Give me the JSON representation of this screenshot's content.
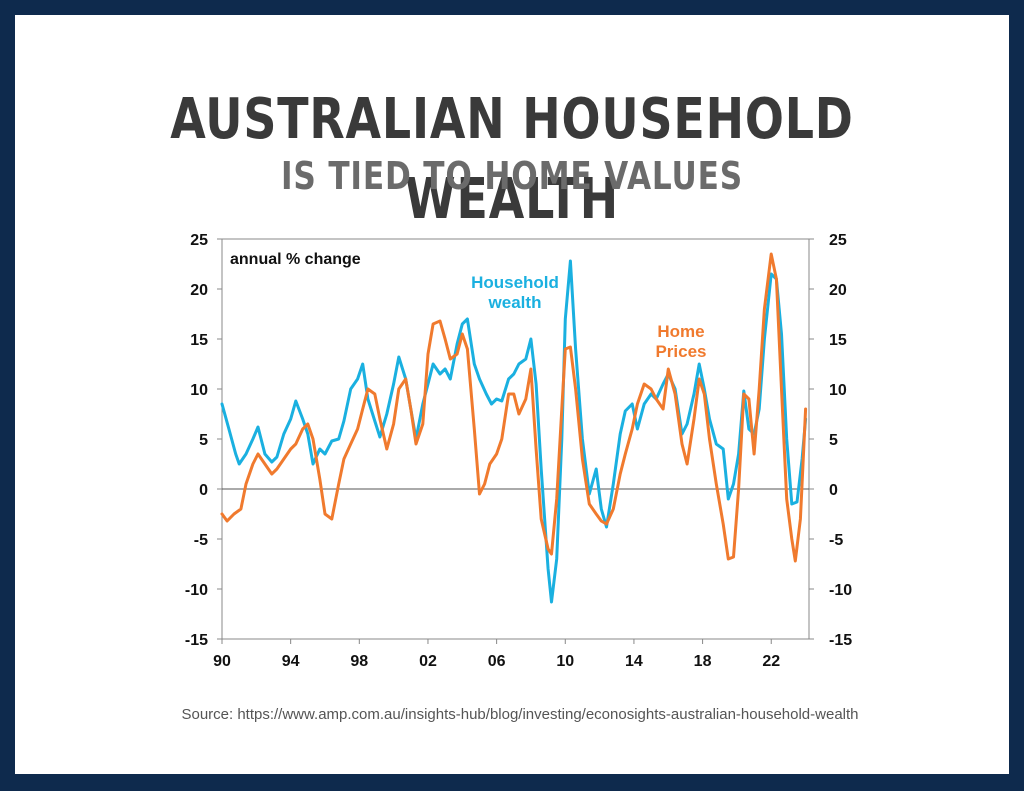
{
  "title": {
    "main": "AUSTRALIAN HOUSEHOLD WEALTH",
    "sub": "IS TIED TO HOME VALUES"
  },
  "source_text": "Source: https://www.amp.com.au/insights-hub/blog/investing/econosights-australian-household-wealth",
  "colors": {
    "background": "#0e2a4d",
    "card": "#ffffff",
    "household_wealth": "#1ab0e0",
    "home_prices": "#f07a2e",
    "title_main": "#3a3a3a",
    "title_sub": "#6b6b6b"
  },
  "chart_data": {
    "type": "line",
    "annotation": "annual % change",
    "y_ticks": [
      "25",
      "20",
      "15",
      "10",
      "5",
      "0",
      "-5",
      "-10",
      "-15"
    ],
    "y_tick_values": [
      25,
      20,
      15,
      10,
      5,
      0,
      -5,
      -10,
      -15
    ],
    "x_ticks": [
      "90",
      "94",
      "98",
      "02",
      "06",
      "10",
      "14",
      "18",
      "22"
    ],
    "x_tick_values": [
      1990,
      1994,
      1998,
      2002,
      2006,
      2010,
      2014,
      2018,
      2022
    ],
    "xlim": [
      1990,
      2024.2
    ],
    "ylim": [
      -15,
      25
    ],
    "secondary_y_axis": true,
    "zero_line": true,
    "grid": false,
    "series": [
      {
        "name": "Household wealth",
        "label_lines": [
          "Household",
          "wealth"
        ],
        "color": "#1ab0e0",
        "points": [
          [
            1990.0,
            8.5
          ],
          [
            1990.4,
            6.0
          ],
          [
            1990.8,
            3.5
          ],
          [
            1991.0,
            2.5
          ],
          [
            1991.4,
            3.5
          ],
          [
            1991.8,
            5.0
          ],
          [
            1992.1,
            6.2
          ],
          [
            1992.5,
            3.5
          ],
          [
            1992.9,
            2.7
          ],
          [
            1993.2,
            3.2
          ],
          [
            1993.6,
            5.5
          ],
          [
            1994.0,
            7.0
          ],
          [
            1994.3,
            8.8
          ],
          [
            1994.7,
            7.0
          ],
          [
            1995.0,
            5.5
          ],
          [
            1995.3,
            2.5
          ],
          [
            1995.7,
            4.0
          ],
          [
            1996.0,
            3.5
          ],
          [
            1996.4,
            4.8
          ],
          [
            1996.8,
            5.0
          ],
          [
            1997.1,
            6.8
          ],
          [
            1997.5,
            10.0
          ],
          [
            1997.9,
            11.0
          ],
          [
            1998.2,
            12.5
          ],
          [
            1998.5,
            9.0
          ],
          [
            1998.9,
            6.8
          ],
          [
            1999.2,
            5.2
          ],
          [
            1999.6,
            7.5
          ],
          [
            2000.0,
            10.5
          ],
          [
            2000.3,
            13.2
          ],
          [
            2000.7,
            11.0
          ],
          [
            2001.0,
            8.0
          ],
          [
            2001.3,
            5.0
          ],
          [
            2001.7,
            8.5
          ],
          [
            2002.0,
            10.5
          ],
          [
            2002.3,
            12.5
          ],
          [
            2002.7,
            11.5
          ],
          [
            2003.0,
            12.0
          ],
          [
            2003.3,
            11.0
          ],
          [
            2003.7,
            14.5
          ],
          [
            2004.0,
            16.5
          ],
          [
            2004.3,
            17.0
          ],
          [
            2004.7,
            12.5
          ],
          [
            2005.0,
            11.0
          ],
          [
            2005.4,
            9.5
          ],
          [
            2005.7,
            8.5
          ],
          [
            2006.0,
            9.0
          ],
          [
            2006.3,
            8.8
          ],
          [
            2006.7,
            11.0
          ],
          [
            2007.0,
            11.5
          ],
          [
            2007.3,
            12.5
          ],
          [
            2007.7,
            13.0
          ],
          [
            2008.0,
            15.0
          ],
          [
            2008.3,
            10.5
          ],
          [
            2008.6,
            2.0
          ],
          [
            2009.0,
            -8.0
          ],
          [
            2009.2,
            -11.3
          ],
          [
            2009.5,
            -7.0
          ],
          [
            2009.8,
            5.0
          ],
          [
            2010.0,
            17.0
          ],
          [
            2010.3,
            22.8
          ],
          [
            2010.6,
            14.0
          ],
          [
            2011.0,
            5.0
          ],
          [
            2011.4,
            -0.5
          ],
          [
            2011.8,
            2.0
          ],
          [
            2012.1,
            -2.0
          ],
          [
            2012.4,
            -3.8
          ],
          [
            2012.8,
            0.5
          ],
          [
            2013.2,
            5.5
          ],
          [
            2013.5,
            7.8
          ],
          [
            2013.9,
            8.5
          ],
          [
            2014.2,
            6.0
          ],
          [
            2014.6,
            8.5
          ],
          [
            2015.0,
            9.5
          ],
          [
            2015.3,
            9.0
          ],
          [
            2015.7,
            10.5
          ],
          [
            2016.0,
            11.5
          ],
          [
            2016.4,
            10.0
          ],
          [
            2016.8,
            5.5
          ],
          [
            2017.1,
            6.5
          ],
          [
            2017.5,
            9.5
          ],
          [
            2017.8,
            12.5
          ],
          [
            2018.1,
            10.0
          ],
          [
            2018.4,
            7.0
          ],
          [
            2018.8,
            4.5
          ],
          [
            2019.2,
            4.0
          ],
          [
            2019.5,
            -1.0
          ],
          [
            2019.8,
            0.5
          ],
          [
            2020.1,
            3.5
          ],
          [
            2020.4,
            9.8
          ],
          [
            2020.7,
            6.0
          ],
          [
            2021.0,
            5.5
          ],
          [
            2021.3,
            8.0
          ],
          [
            2021.6,
            15.0
          ],
          [
            2022.0,
            21.5
          ],
          [
            2022.3,
            21.0
          ],
          [
            2022.6,
            15.5
          ],
          [
            2022.9,
            5.0
          ],
          [
            2023.2,
            -1.5
          ],
          [
            2023.5,
            -1.3
          ],
          [
            2023.8,
            3.0
          ],
          [
            2024.0,
            7.0
          ]
        ]
      },
      {
        "name": "Home Prices",
        "label_lines": [
          "Home",
          "Prices"
        ],
        "color": "#f07a2e",
        "points": [
          [
            1990.0,
            -2.5
          ],
          [
            1990.3,
            -3.2
          ],
          [
            1990.7,
            -2.5
          ],
          [
            1991.1,
            -2.0
          ],
          [
            1991.4,
            0.5
          ],
          [
            1991.8,
            2.5
          ],
          [
            1992.1,
            3.5
          ],
          [
            1992.5,
            2.5
          ],
          [
            1992.9,
            1.5
          ],
          [
            1993.2,
            2.0
          ],
          [
            1993.6,
            3.0
          ],
          [
            1994.0,
            4.0
          ],
          [
            1994.3,
            4.5
          ],
          [
            1994.7,
            6.0
          ],
          [
            1995.0,
            6.5
          ],
          [
            1995.3,
            5.0
          ],
          [
            1995.7,
            1.0
          ],
          [
            1996.0,
            -2.5
          ],
          [
            1996.4,
            -3.0
          ],
          [
            1996.8,
            0.5
          ],
          [
            1997.1,
            3.0
          ],
          [
            1997.5,
            4.5
          ],
          [
            1997.9,
            6.0
          ],
          [
            1998.2,
            8.0
          ],
          [
            1998.5,
            10.0
          ],
          [
            1998.9,
            9.5
          ],
          [
            1999.2,
            7.0
          ],
          [
            1999.6,
            4.0
          ],
          [
            2000.0,
            6.5
          ],
          [
            2000.3,
            10.0
          ],
          [
            2000.7,
            11.0
          ],
          [
            2001.0,
            8.0
          ],
          [
            2001.3,
            4.5
          ],
          [
            2001.7,
            6.5
          ],
          [
            2002.0,
            13.5
          ],
          [
            2002.3,
            16.5
          ],
          [
            2002.7,
            16.8
          ],
          [
            2003.0,
            15.0
          ],
          [
            2003.3,
            13.0
          ],
          [
            2003.7,
            13.5
          ],
          [
            2004.0,
            15.5
          ],
          [
            2004.3,
            14.0
          ],
          [
            2004.7,
            6.0
          ],
          [
            2005.0,
            -0.5
          ],
          [
            2005.3,
            0.5
          ],
          [
            2005.6,
            2.5
          ],
          [
            2006.0,
            3.5
          ],
          [
            2006.3,
            5.0
          ],
          [
            2006.7,
            9.5
          ],
          [
            2007.0,
            9.5
          ],
          [
            2007.3,
            7.5
          ],
          [
            2007.7,
            9.0
          ],
          [
            2008.0,
            12.0
          ],
          [
            2008.3,
            4.0
          ],
          [
            2008.6,
            -3.0
          ],
          [
            2009.0,
            -6.0
          ],
          [
            2009.2,
            -6.5
          ],
          [
            2009.5,
            -1.0
          ],
          [
            2009.8,
            8.0
          ],
          [
            2010.0,
            14.0
          ],
          [
            2010.3,
            14.2
          ],
          [
            2010.6,
            10.0
          ],
          [
            2011.0,
            3.0
          ],
          [
            2011.4,
            -1.5
          ],
          [
            2011.8,
            -2.5
          ],
          [
            2012.1,
            -3.2
          ],
          [
            2012.4,
            -3.5
          ],
          [
            2012.8,
            -2.0
          ],
          [
            2013.2,
            1.5
          ],
          [
            2013.5,
            3.5
          ],
          [
            2013.9,
            6.0
          ],
          [
            2014.2,
            8.5
          ],
          [
            2014.6,
            10.5
          ],
          [
            2015.0,
            10.0
          ],
          [
            2015.3,
            9.0
          ],
          [
            2015.7,
            8.0
          ],
          [
            2016.0,
            12.0
          ],
          [
            2016.4,
            9.5
          ],
          [
            2016.8,
            4.5
          ],
          [
            2017.1,
            2.5
          ],
          [
            2017.5,
            7.0
          ],
          [
            2017.8,
            11.0
          ],
          [
            2018.1,
            9.5
          ],
          [
            2018.4,
            5.0
          ],
          [
            2018.8,
            0.5
          ],
          [
            2019.2,
            -3.5
          ],
          [
            2019.5,
            -7.0
          ],
          [
            2019.8,
            -6.8
          ],
          [
            2020.1,
            0.0
          ],
          [
            2020.4,
            9.5
          ],
          [
            2020.7,
            9.0
          ],
          [
            2021.0,
            3.5
          ],
          [
            2021.3,
            10.0
          ],
          [
            2021.6,
            18.0
          ],
          [
            2022.0,
            23.5
          ],
          [
            2022.3,
            21.0
          ],
          [
            2022.6,
            10.0
          ],
          [
            2022.9,
            -1.0
          ],
          [
            2023.2,
            -5.0
          ],
          [
            2023.4,
            -7.2
          ],
          [
            2023.7,
            -3.0
          ],
          [
            2024.0,
            8.0
          ]
        ]
      }
    ]
  }
}
